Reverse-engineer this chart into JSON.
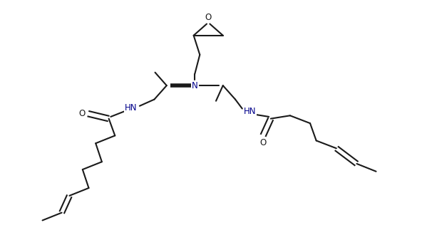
{
  "bg_color": "#ffffff",
  "line_color": "#1a1a1a",
  "heteroatom_color": "#00008b",
  "lw": 1.5,
  "fs": 8.5,
  "figsize": [
    6.06,
    3.3
  ],
  "dpi": 100,
  "xlim": [
    -0.5,
    10.5
  ],
  "ylim": [
    -0.3,
    5.8
  ]
}
